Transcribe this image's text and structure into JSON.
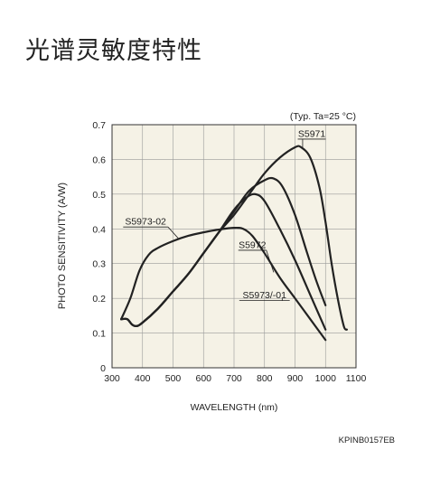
{
  "page": {
    "heading": "光谱灵敏度特性"
  },
  "chart_data": {
    "type": "line",
    "xlabel": "WAVELENGTH (nm)",
    "ylabel": "PHOTO SENSITIVITY (A/W)",
    "xlim": [
      300,
      1100
    ],
    "ylim": [
      0,
      0.7
    ],
    "x_ticks": [
      "300",
      "400",
      "500",
      "600",
      "700",
      "800",
      "900",
      "1000",
      "1100"
    ],
    "y_ticks": [
      "0",
      "0.1",
      "0.2",
      "0.3",
      "0.4",
      "0.5",
      "0.6",
      "0.7"
    ],
    "grid": true,
    "note": "(Typ. Ta=25 °C)",
    "figure_code": "KPINB0157EB",
    "background_color": "#f5f2e6",
    "line_color": "#222222",
    "series": [
      {
        "name": "S5971",
        "points": [
          [
            330,
            0.14
          ],
          [
            350,
            0.14
          ],
          [
            365,
            0.125
          ],
          [
            380,
            0.12
          ],
          [
            400,
            0.13
          ],
          [
            450,
            0.17
          ],
          [
            500,
            0.22
          ],
          [
            550,
            0.27
          ],
          [
            600,
            0.33
          ],
          [
            650,
            0.39
          ],
          [
            700,
            0.44
          ],
          [
            750,
            0.5
          ],
          [
            800,
            0.56
          ],
          [
            850,
            0.605
          ],
          [
            900,
            0.635
          ],
          [
            920,
            0.635
          ],
          [
            950,
            0.605
          ],
          [
            980,
            0.52
          ],
          [
            1000,
            0.42
          ],
          [
            1020,
            0.3
          ],
          [
            1040,
            0.2
          ],
          [
            1060,
            0.12
          ],
          [
            1070,
            0.11
          ]
        ]
      },
      {
        "name": "S5972",
        "points": [
          [
            330,
            0.14
          ],
          [
            350,
            0.14
          ],
          [
            365,
            0.125
          ],
          [
            380,
            0.12
          ],
          [
            400,
            0.13
          ],
          [
            450,
            0.17
          ],
          [
            500,
            0.22
          ],
          [
            550,
            0.27
          ],
          [
            600,
            0.33
          ],
          [
            650,
            0.39
          ],
          [
            700,
            0.45
          ],
          [
            750,
            0.51
          ],
          [
            800,
            0.54
          ],
          [
            830,
            0.545
          ],
          [
            860,
            0.52
          ],
          [
            900,
            0.44
          ],
          [
            940,
            0.33
          ],
          [
            970,
            0.25
          ],
          [
            1000,
            0.18
          ]
        ]
      },
      {
        "name": "S5973-02",
        "points": [
          [
            330,
            0.14
          ],
          [
            360,
            0.2
          ],
          [
            390,
            0.28
          ],
          [
            420,
            0.325
          ],
          [
            450,
            0.345
          ],
          [
            500,
            0.365
          ],
          [
            550,
            0.38
          ],
          [
            600,
            0.39
          ],
          [
            650,
            0.398
          ],
          [
            700,
            0.403
          ],
          [
            730,
            0.4
          ],
          [
            760,
            0.38
          ],
          [
            800,
            0.33
          ],
          [
            850,
            0.26
          ],
          [
            900,
            0.2
          ],
          [
            950,
            0.14
          ],
          [
            1000,
            0.08
          ]
        ]
      },
      {
        "name": "S5973/-01",
        "points": [
          [
            330,
            0.14
          ],
          [
            350,
            0.14
          ],
          [
            365,
            0.125
          ],
          [
            380,
            0.12
          ],
          [
            400,
            0.13
          ],
          [
            450,
            0.17
          ],
          [
            500,
            0.22
          ],
          [
            550,
            0.27
          ],
          [
            600,
            0.33
          ],
          [
            650,
            0.39
          ],
          [
            700,
            0.455
          ],
          [
            740,
            0.49
          ],
          [
            770,
            0.5
          ],
          [
            800,
            0.48
          ],
          [
            850,
            0.4
          ],
          [
            900,
            0.31
          ],
          [
            950,
            0.21
          ],
          [
            1000,
            0.11
          ]
        ]
      }
    ],
    "annotations": [
      {
        "text": "S5971",
        "target": [
          925,
          0.63
        ],
        "label_at": [
          955,
          0.665
        ]
      },
      {
        "text": "S5973-02",
        "target": [
          520,
          0.37
        ],
        "label_at": [
          410,
          0.412
        ]
      },
      {
        "text": "S5972",
        "target": [
          830,
          0.275
        ],
        "label_at": [
          760,
          0.345
        ]
      },
      {
        "text": "S5973/-01",
        "target": [
          858,
          0.2
        ],
        "label_at": [
          800,
          0.2
        ]
      }
    ]
  }
}
